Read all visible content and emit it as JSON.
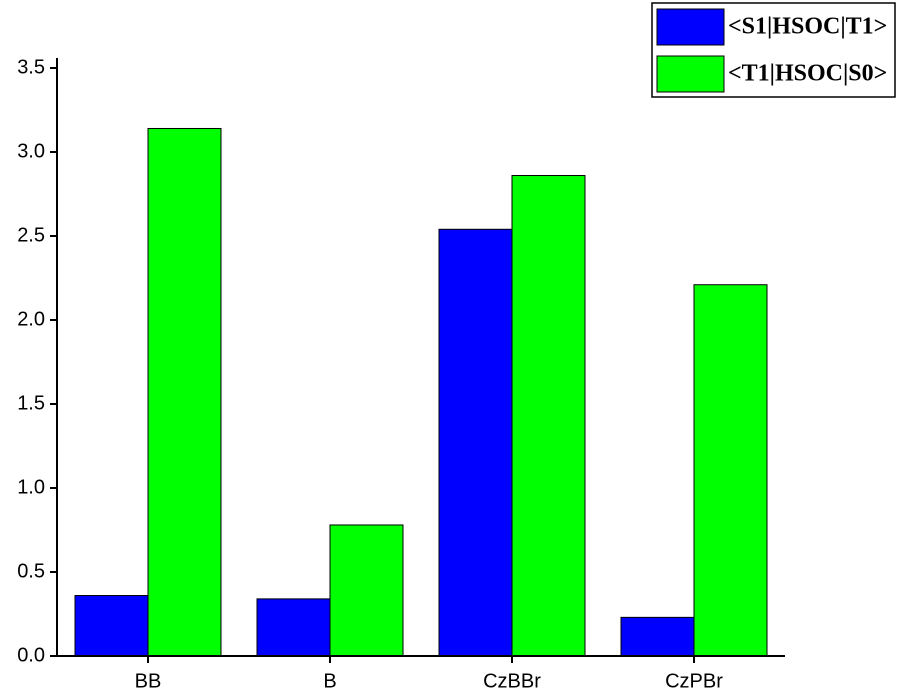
{
  "chart_data": {
    "type": "bar",
    "categories": [
      "BB",
      "B",
      "CzBBr",
      "CzPBr"
    ],
    "series": [
      {
        "name": "<S1|HSOC|T1>",
        "color": "#0000ff",
        "values": [
          0.36,
          0.34,
          2.54,
          0.23
        ]
      },
      {
        "name": "<T1|HSOC|S0>",
        "color": "#00ff00",
        "values": [
          3.14,
          0.78,
          2.86,
          2.21
        ]
      }
    ],
    "ylim": [
      0,
      3.5
    ],
    "yticks": [
      {
        "value": 0,
        "label": "0.0"
      },
      {
        "value": 0.5,
        "label": "0.5"
      },
      {
        "value": 1,
        "label": "1.0"
      },
      {
        "value": 1.5,
        "label": "1.5"
      },
      {
        "value": 2,
        "label": "2.0"
      },
      {
        "value": 2.5,
        "label": "2.5"
      },
      {
        "value": 3,
        "label": "3.0"
      },
      {
        "value": 3.5,
        "label": "3.5"
      }
    ],
    "legend": "upper right"
  }
}
